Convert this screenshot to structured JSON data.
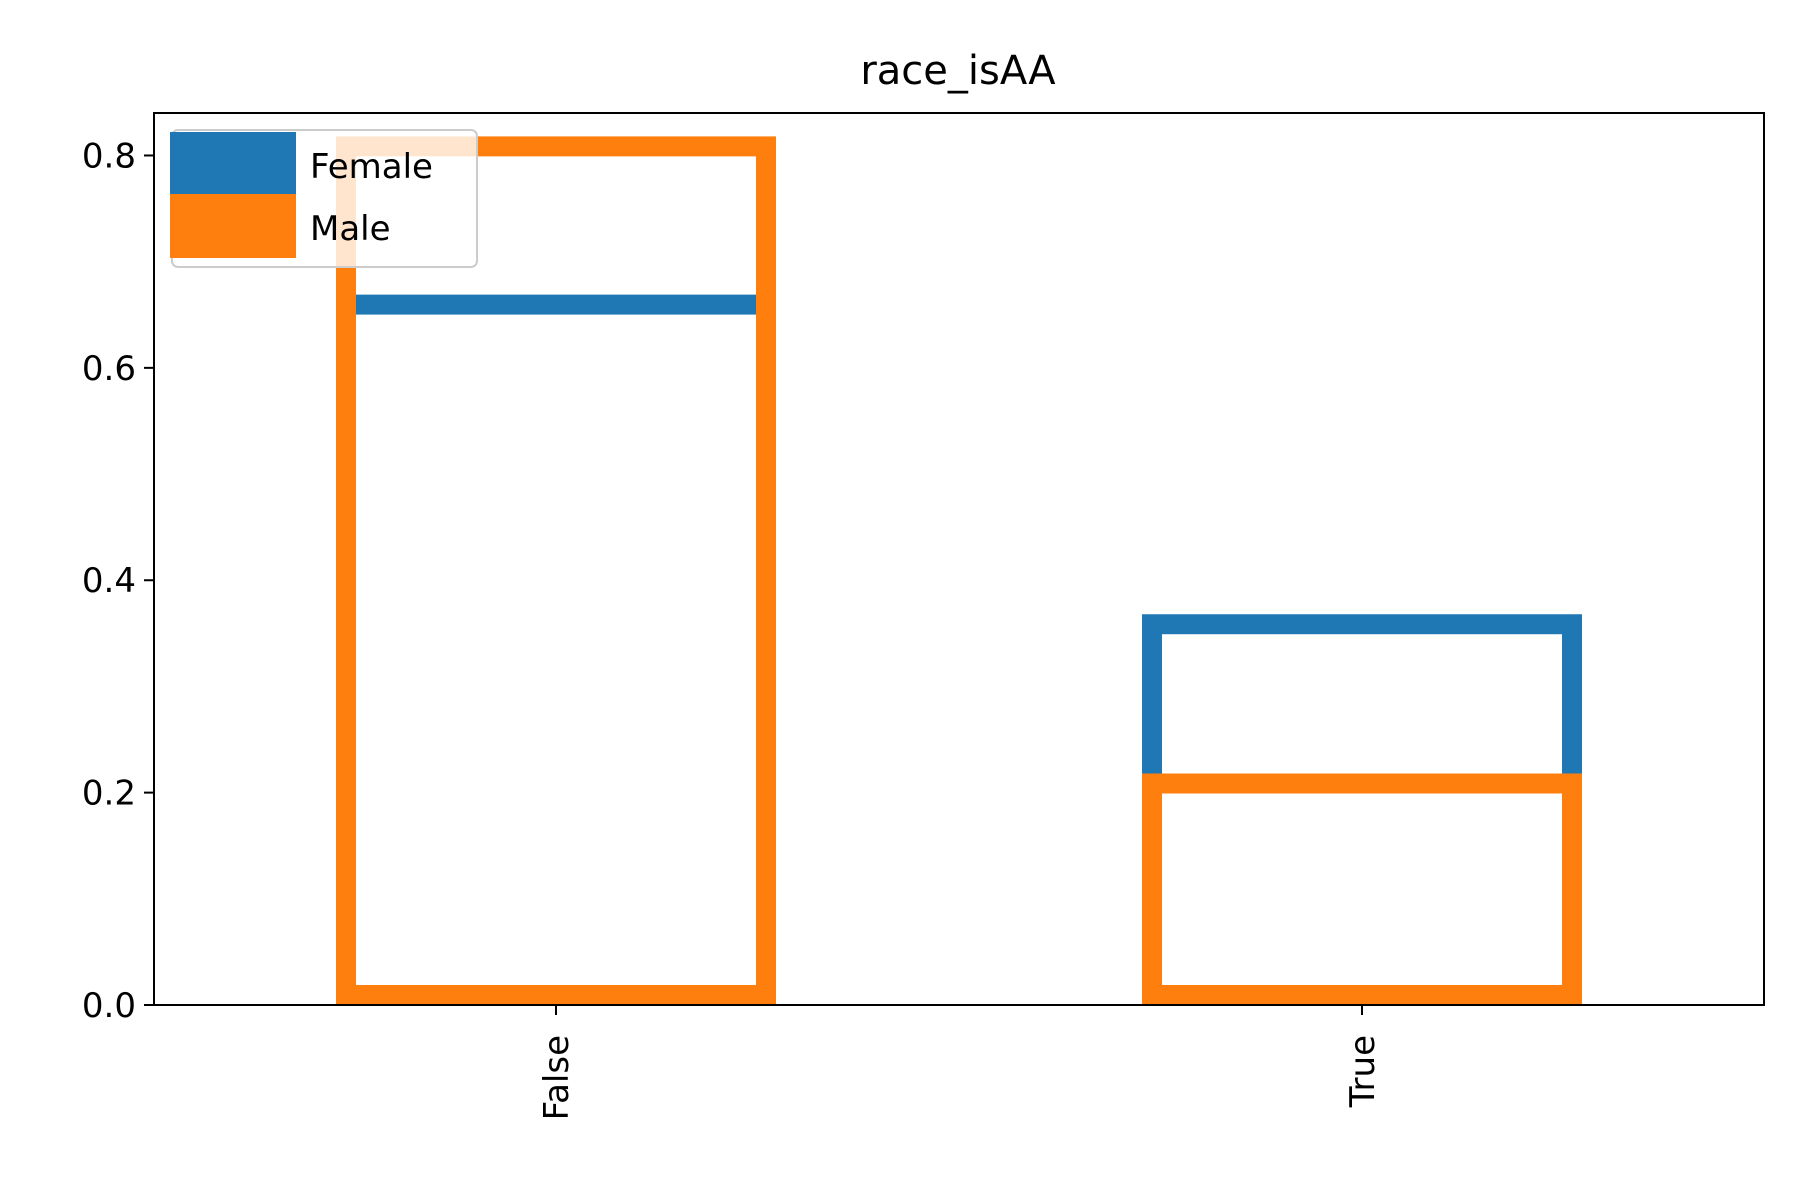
{
  "chart_data": {
    "type": "bar",
    "title": "race_isAA",
    "xlabel": "",
    "ylabel": "",
    "categories": [
      "False",
      "True"
    ],
    "series": [
      {
        "name": "Female",
        "values": [
          0.669,
          0.368
        ],
        "color": "#1f77b4"
      },
      {
        "name": "Male",
        "values": [
          0.818,
          0.218
        ],
        "color": "#ff7f0e"
      }
    ],
    "y_ticks": [
      "0.0",
      "0.2",
      "0.4",
      "0.6",
      "0.8"
    ],
    "ylim": [
      0,
      0.84
    ],
    "bar_style": "unfilled-outline",
    "x_tick_rotation": "vertical",
    "legend": {
      "position": "upper-left"
    },
    "grid": false
  }
}
